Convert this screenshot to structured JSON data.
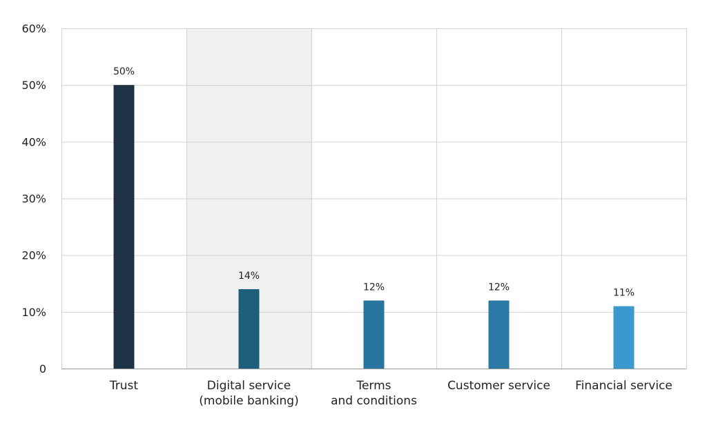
{
  "chart_data": {
    "type": "bar",
    "categories": [
      [
        "Trust"
      ],
      [
        "Digital service",
        "(mobile banking)"
      ],
      [
        "Terms",
        "and conditions"
      ],
      [
        "Customer service"
      ],
      [
        "Financial service"
      ]
    ],
    "values": [
      50,
      14,
      12,
      12,
      11
    ],
    "data_labels": [
      "50%",
      "14%",
      "12%",
      "12%",
      "11%"
    ],
    "bar_colors": [
      "#1e3346",
      "#1f5f7c",
      "#2876a0",
      "#2a78a3",
      "#3a9acd"
    ],
    "highlighted_category_index": 1,
    "highlight_color": "#eff1f0",
    "yticks": [
      0,
      10,
      20,
      30,
      40,
      50,
      60
    ],
    "ytick_labels": [
      "0",
      "10%",
      "20%",
      "30%",
      "40%",
      "50%",
      "60%"
    ],
    "ylim": [
      0,
      60
    ],
    "grid": true,
    "legend": "none"
  }
}
